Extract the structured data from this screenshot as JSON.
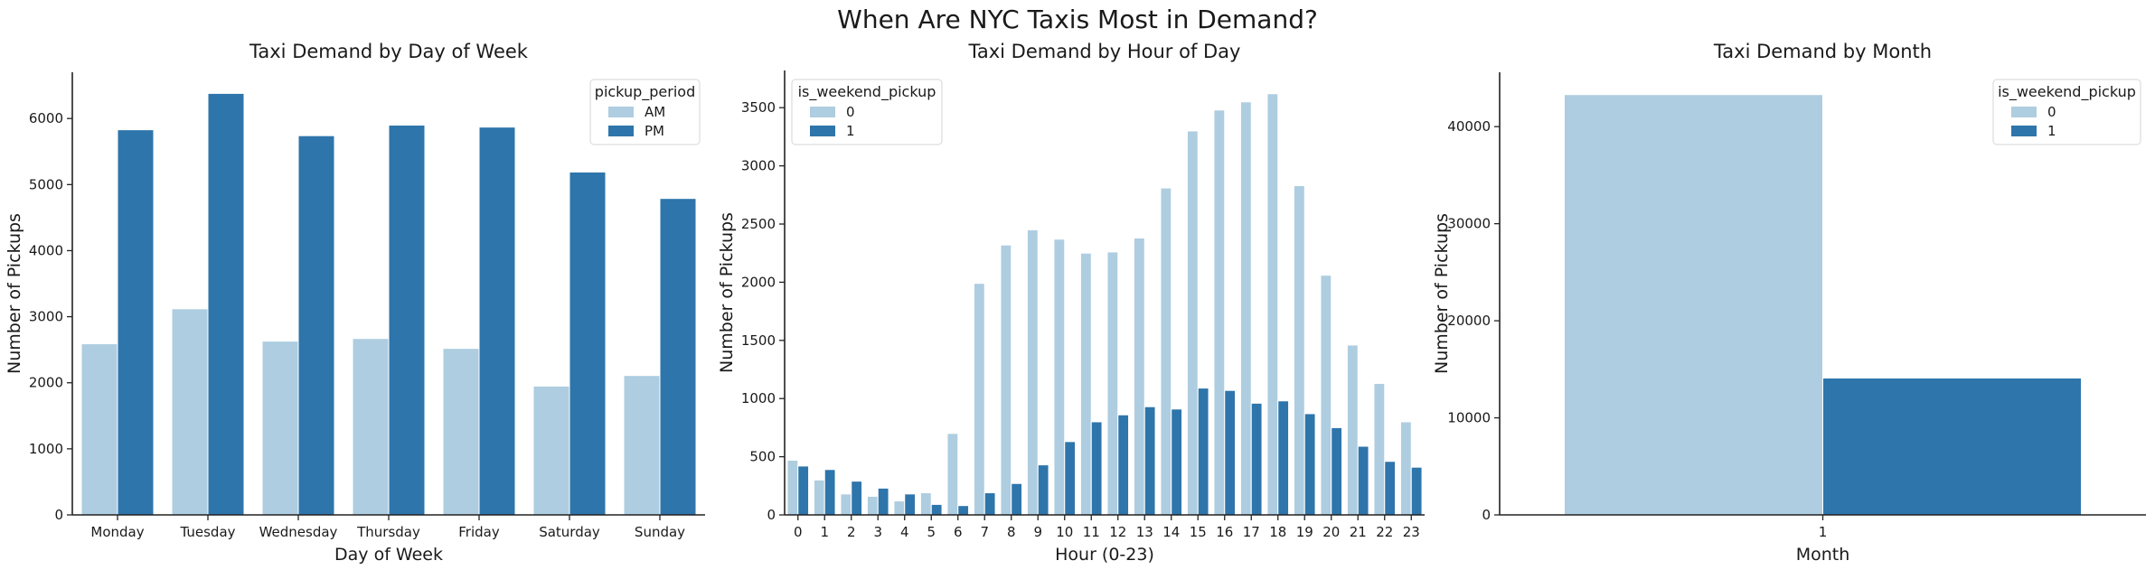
{
  "figure": {
    "suptitle": "When Are NYC Taxis Most in Demand?"
  },
  "colors": {
    "light": "#aecde0",
    "dark": "#2e75ab",
    "axis": "#222222"
  },
  "chart_data": [
    {
      "type": "bar",
      "title": "Taxi Demand by Day of Week",
      "xlabel": "Day of Week",
      "ylabel": "Number of Pickups",
      "categories": [
        "Monday",
        "Tuesday",
        "Wednesday",
        "Thursday",
        "Friday",
        "Saturday",
        "Sunday"
      ],
      "ylim": [
        0,
        6700
      ],
      "yticks": [
        0,
        1000,
        2000,
        3000,
        4000,
        5000,
        6000
      ],
      "legend": {
        "title": "pickup_period",
        "placement": "top-right"
      },
      "series": [
        {
          "name": "AM",
          "color": "#aecde0",
          "values": [
            2590,
            3120,
            2630,
            2670,
            2520,
            1950,
            2110
          ]
        },
        {
          "name": "PM",
          "color": "#2e75ab",
          "values": [
            5830,
            6380,
            5740,
            5900,
            5870,
            5190,
            4790
          ]
        }
      ]
    },
    {
      "type": "bar",
      "title": "Taxi Demand by Hour of Day",
      "xlabel": "Hour (0-23)",
      "ylabel": "Number of Pickups",
      "categories": [
        "0",
        "1",
        "2",
        "3",
        "4",
        "5",
        "6",
        "7",
        "8",
        "9",
        "10",
        "11",
        "12",
        "13",
        "14",
        "15",
        "16",
        "17",
        "18",
        "19",
        "20",
        "21",
        "22",
        "23"
      ],
      "ylim": [
        0,
        3820
      ],
      "yticks": [
        0,
        500,
        1000,
        1500,
        2000,
        2500,
        3000,
        3500
      ],
      "legend": {
        "title": "is_weekend_pickup",
        "placement": "top-left"
      },
      "series": [
        {
          "name": "0",
          "color": "#aecde0",
          "values": [
            470,
            300,
            180,
            160,
            120,
            190,
            700,
            1990,
            2320,
            2450,
            2370,
            2250,
            2260,
            2380,
            2810,
            3300,
            3480,
            3550,
            3620,
            2830,
            2060,
            1460,
            1130,
            800
          ]
        },
        {
          "name": "1",
          "color": "#2e75ab",
          "values": [
            420,
            390,
            290,
            230,
            180,
            90,
            80,
            190,
            270,
            430,
            630,
            800,
            860,
            930,
            910,
            1090,
            1070,
            960,
            980,
            870,
            750,
            590,
            460,
            410
          ]
        }
      ]
    },
    {
      "type": "bar",
      "title": "Taxi Demand by Month",
      "xlabel": "Month",
      "ylabel": "Number of Pickups",
      "categories": [
        "1"
      ],
      "ylim": [
        0,
        45600
      ],
      "yticks": [
        0,
        10000,
        20000,
        30000,
        40000
      ],
      "legend": {
        "title": "is_weekend_pickup",
        "placement": "top-right"
      },
      "series": [
        {
          "name": "0",
          "color": "#aecde0",
          "values": [
            43300
          ]
        },
        {
          "name": "1",
          "color": "#2e75ab",
          "values": [
            14100
          ]
        }
      ]
    }
  ]
}
